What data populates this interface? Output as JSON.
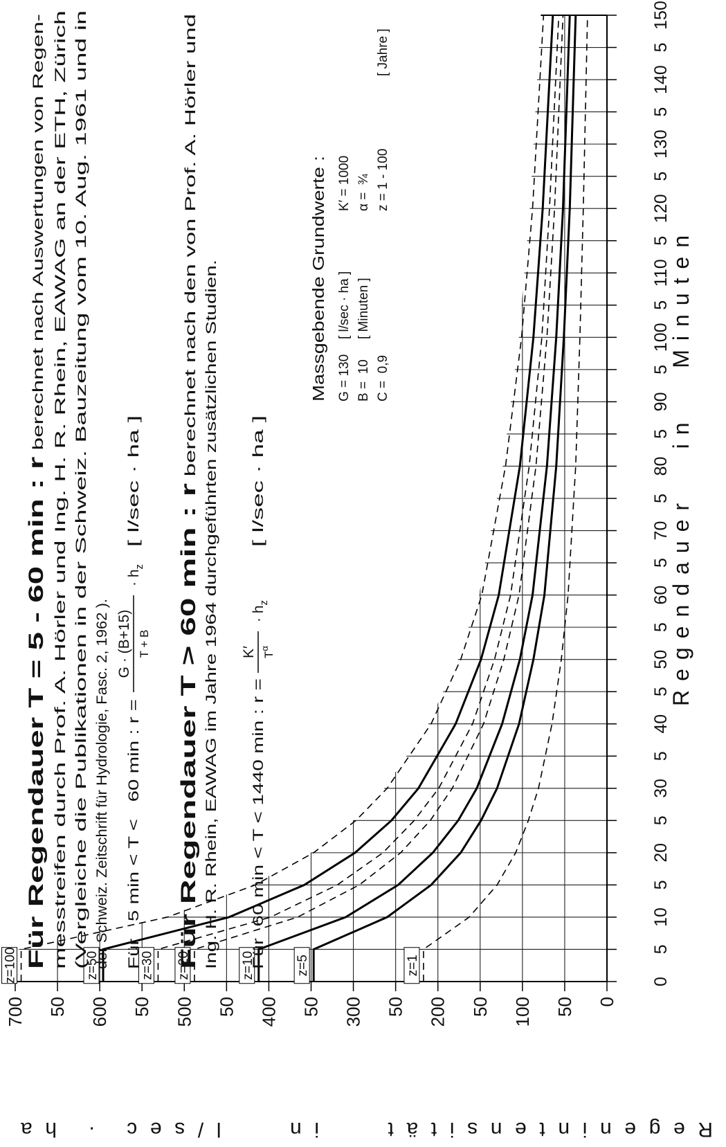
{
  "chart_data": {
    "type": "line",
    "xlabel": "Regendauer   in   Minuten",
    "ylabel": "Regenintensität   in   l/sec · ha",
    "x": [
      0,
      5,
      10,
      15,
      20,
      25,
      30,
      40,
      50,
      60,
      80,
      100,
      120,
      150
    ],
    "series": [
      {
        "name": "z=1",
        "color": "#000000",
        "style": "dashed",
        "values": [
          217,
          217,
          163,
          130,
          108,
          93,
          81,
          65,
          54,
          46,
          37,
          32,
          28,
          23
        ]
      },
      {
        "name": "z=5",
        "color": "#000000",
        "style": "solid",
        "values": [
          347,
          347,
          260,
          208,
          173,
          149,
          130,
          104,
          87,
          74,
          60,
          51,
          44,
          37
        ]
      },
      {
        "name": "z=10",
        "color": "#000000",
        "style": "solid",
        "values": [
          412,
          412,
          309,
          247,
          206,
          176,
          154,
          124,
          103,
          88,
          71,
          60,
          52,
          44
        ]
      },
      {
        "name": "z=20",
        "color": "#000000",
        "style": "dashed",
        "values": [
          488,
          488,
          366,
          293,
          244,
          209,
          183,
          146,
          122,
          104,
          84,
          71,
          62,
          52
        ]
      },
      {
        "name": "z=30",
        "color": "#000000",
        "style": "dashed",
        "values": [
          531,
          531,
          398,
          319,
          265,
          228,
          199,
          159,
          133,
          114,
          92,
          77,
          68,
          57
        ]
      },
      {
        "name": "z=50",
        "color": "#000000",
        "style": "solid",
        "values": [
          596,
          596,
          447,
          358,
          298,
          255,
          223,
          179,
          149,
          128,
          103,
          87,
          76,
          64
        ]
      },
      {
        "name": "z=100",
        "color": "#000000",
        "style": "dashed",
        "values": [
          693,
          693,
          520,
          416,
          347,
          297,
          260,
          208,
          173,
          148,
          120,
          101,
          88,
          75
        ]
      }
    ],
    "xlim": [
      0,
      150
    ],
    "ylim": [
      0,
      700
    ],
    "xticks": [
      0,
      5,
      10,
      {
        "value": 15,
        "label": "5"
      },
      20,
      {
        "value": 25,
        "label": "5"
      },
      30,
      {
        "value": 35,
        "label": "5"
      },
      40,
      {
        "value": 45,
        "label": "5"
      },
      50,
      {
        "value": 55,
        "label": "5"
      },
      60,
      {
        "value": 65,
        "label": "5"
      },
      70,
      {
        "value": 75,
        "label": "5"
      },
      80,
      {
        "value": 85,
        "label": "5"
      },
      90,
      {
        "value": 95,
        "label": "5"
      },
      100,
      {
        "value": 105,
        "label": "5"
      },
      110,
      {
        "value": 115,
        "label": "5"
      },
      120,
      {
        "value": 125,
        "label": "5"
      },
      130,
      {
        "value": 135,
        "label": "5"
      },
      140,
      {
        "value": 145,
        "label": "5"
      },
      150
    ],
    "yticks": [
      0,
      50,
      100,
      {
        "value": 150,
        "label": "50"
      },
      200,
      {
        "value": 250,
        "label": "50"
      },
      300,
      {
        "value": 350,
        "label": "50"
      },
      400,
      {
        "value": 450,
        "label": "50"
      },
      500,
      {
        "value": 550,
        "label": "50"
      },
      600,
      {
        "value": 650,
        "label": "50"
      },
      700
    ],
    "grid": true,
    "text_blocks": [
      {
        "heading": "Für Regendauer T = 5 - 60 min : r",
        "lines": [
          " berechnet nach Auswertungen von Regen-",
          "messtreifen durch Prof. A. Hörler und Ing. H. R. Rhein, EAWAG an der ETH, Zürich",
          "(Vergleiche die Publikationen in der Schweiz. Bauzeitung vom 10. Aug. 1961 und in",
          "der Schweiz. Zeitschrift für Hydrologie, Fasc. 2, 1962 )."
        ]
      },
      {
        "heading": "Für Regendauer T > 60 min : r",
        "lines": [
          " berechnet nach den von Prof. A. Hörler und",
          "Ing. H. R. Rhein, EAWAG im Jahre 1964 durchgeführten zusätzlichen Studien."
        ]
      }
    ],
    "formulas": [
      {
        "range": "Für   5 min < T <   60 min : r =",
        "numerator": "G · (B+15)",
        "denominator": "T + B",
        "factor": "· h",
        "factor_sub": "z",
        "unit": "[ l/sec · ha ]"
      },
      {
        "range": "Für  60 min < T < 1440 min : r =",
        "numerator": "K′",
        "denominator": "T",
        "denominator_sup": "α",
        "factor": "· h",
        "factor_sub": "z",
        "unit": "[ l/sec · ha ]"
      }
    ],
    "constants": {
      "title": "Massgebende Grundwerte :",
      "rows": [
        [
          "G = 130",
          "[ l/sec · ha ]",
          "K′ = 1000"
        ],
        [
          "B =  10",
          "[ Minuten ]",
          "α =  ¾"
        ],
        [
          "C =  0,9",
          "z = 1 - 100",
          "[ Jahre ]"
        ]
      ]
    }
  }
}
